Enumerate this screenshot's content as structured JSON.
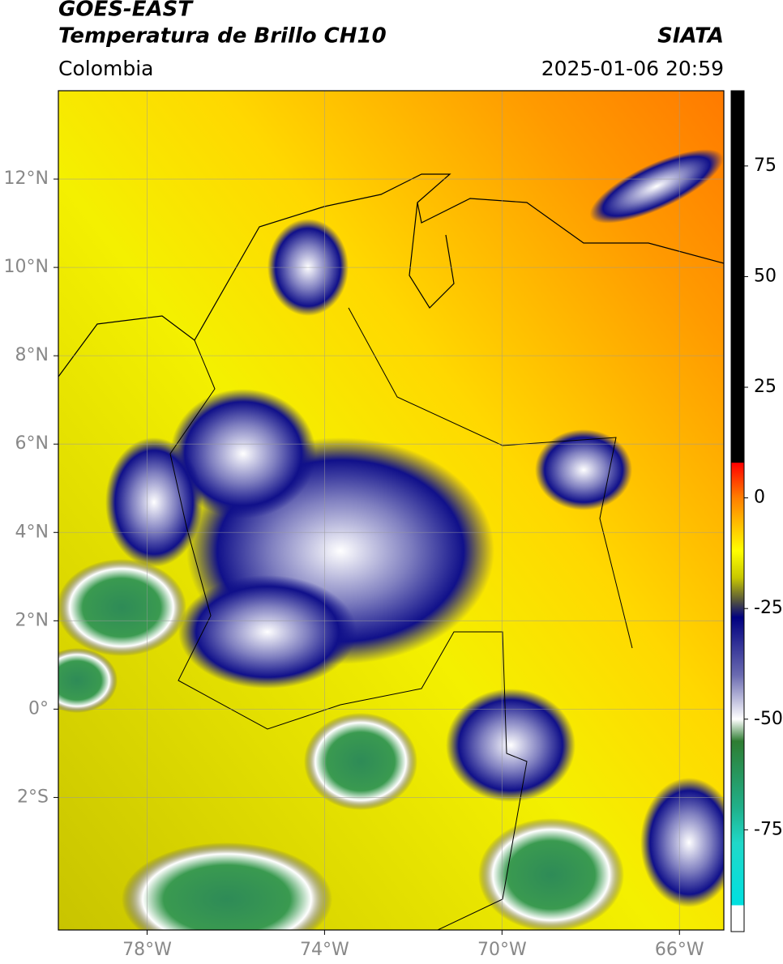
{
  "header": {
    "title": "GOES-EAST",
    "subtitle": "Temperatura de Brillo CH10",
    "source": "SIATA",
    "region": "Colombia",
    "datetime": "2025-01-06 20:59"
  },
  "map": {
    "xlim": [
      -80,
      -65
    ],
    "ylim": [
      -5,
      14
    ],
    "grid": true,
    "xticks": [
      {
        "value": -78,
        "label": "78°W"
      },
      {
        "value": -74,
        "label": "74°W"
      },
      {
        "value": -70,
        "label": "70°W"
      },
      {
        "value": -66,
        "label": "66°W"
      }
    ],
    "yticks": [
      {
        "value": 12,
        "label": "12°N"
      },
      {
        "value": 10,
        "label": "10°N"
      },
      {
        "value": 8,
        "label": "8°N"
      },
      {
        "value": 6,
        "label": "6°N"
      },
      {
        "value": 4,
        "label": "4°N"
      },
      {
        "value": 2,
        "label": "2°N"
      },
      {
        "value": 0,
        "label": "0°"
      },
      {
        "value": -2,
        "label": "2°S"
      }
    ]
  },
  "colorbar": {
    "lim": [
      -98,
      92
    ],
    "ticks": [
      75,
      50,
      25,
      0,
      -25,
      -50,
      -75
    ],
    "stops": [
      {
        "value": 92,
        "color": "#000000"
      },
      {
        "value": 8,
        "color": "#000000"
      },
      {
        "value": 7.9,
        "color": "#ff0000"
      },
      {
        "value": 0,
        "color": "#ff7f00"
      },
      {
        "value": -12,
        "color": "#ffff00"
      },
      {
        "value": -18,
        "color": "#c8c800"
      },
      {
        "value": -23,
        "color": "#5a5a3a"
      },
      {
        "value": -27,
        "color": "#000080"
      },
      {
        "value": -40,
        "color": "#6a6ab0"
      },
      {
        "value": -50,
        "color": "#ffffff"
      },
      {
        "value": -55,
        "color": "#2e7d32"
      },
      {
        "value": -70,
        "color": "#20b08a"
      },
      {
        "value": -78,
        "color": "#20d8c8"
      },
      {
        "value": -92,
        "color": "#00e0e0"
      },
      {
        "value": -92.1,
        "color": "#ffffff"
      },
      {
        "value": -98,
        "color": "#ffffff"
      }
    ]
  }
}
